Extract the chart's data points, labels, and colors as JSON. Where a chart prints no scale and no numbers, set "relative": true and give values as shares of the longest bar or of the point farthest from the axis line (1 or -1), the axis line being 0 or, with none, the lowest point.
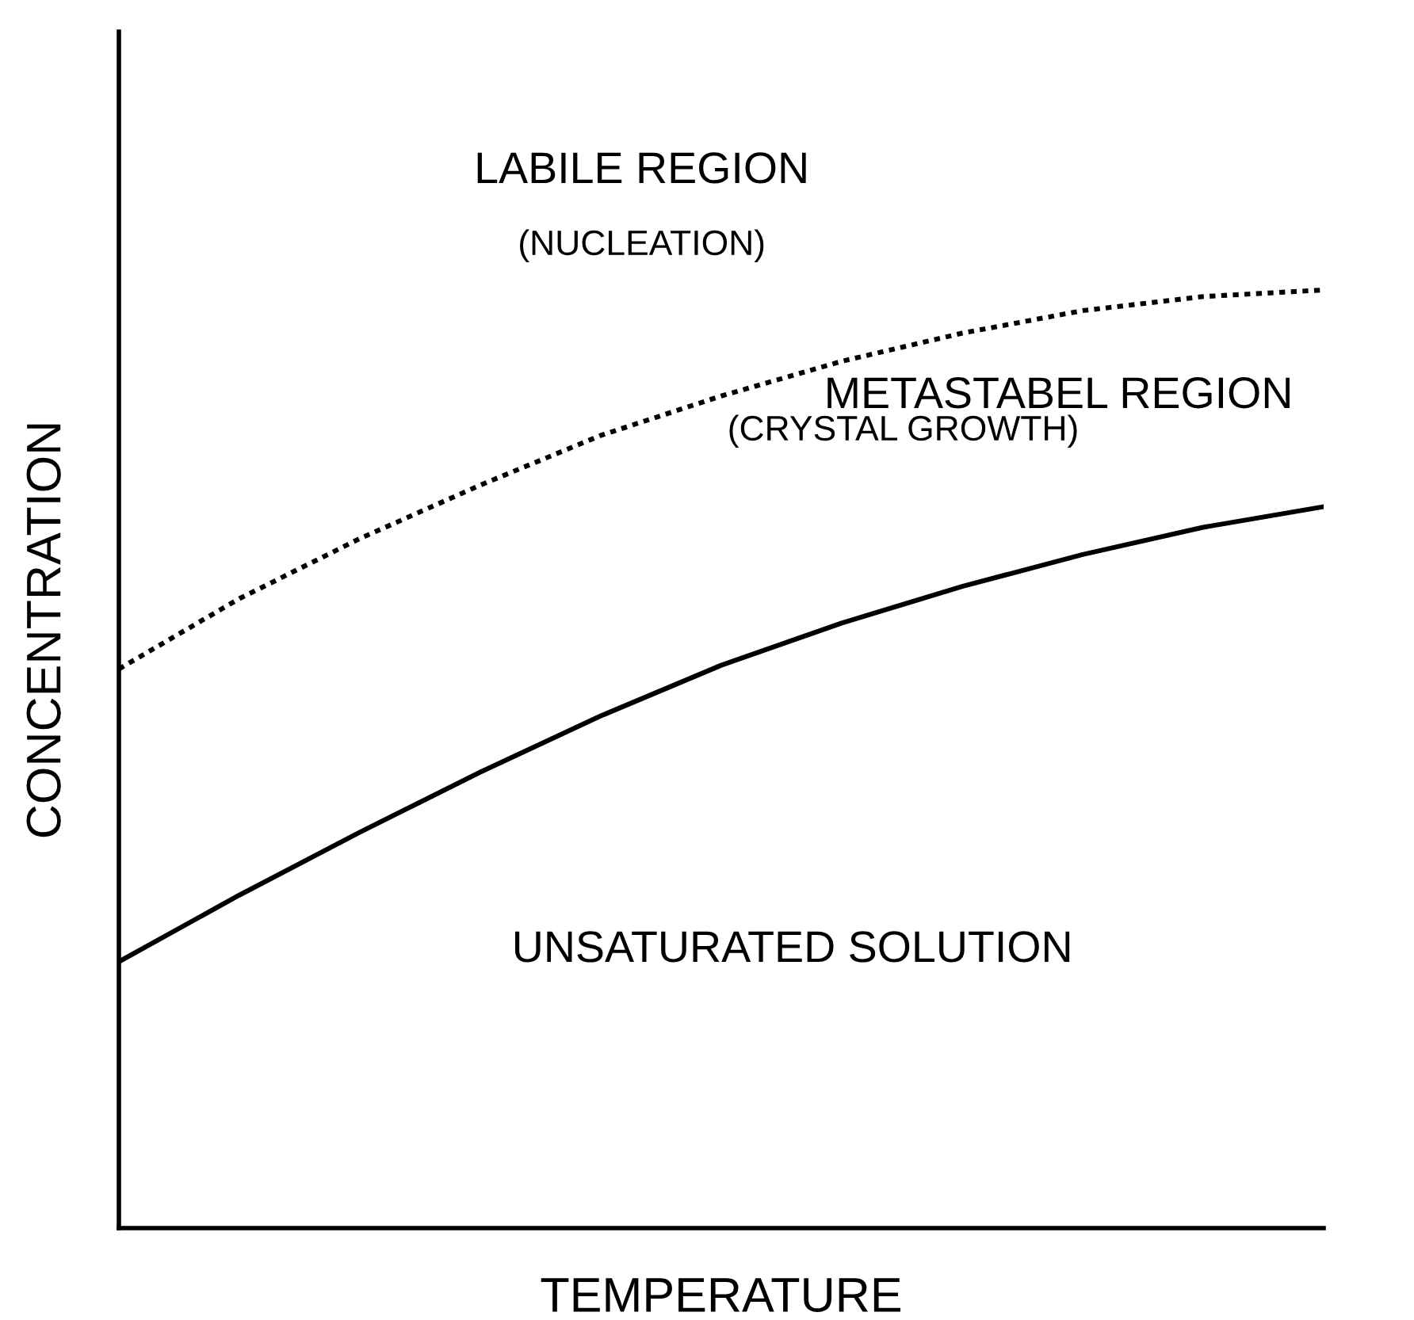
{
  "chart_data": {
    "type": "line",
    "relative": true,
    "xlabel": "TEMPERATURE",
    "ylabel": "CONCENTRATION",
    "categories": [
      null,
      null,
      null,
      null,
      null,
      null,
      null,
      null,
      null,
      null,
      null
    ],
    "series": [
      {
        "color": "#000000",
        "line_style": "dotted",
        "values": [
          0.596,
          0.671,
          0.735,
          0.792,
          0.845,
          0.887,
          0.924,
          0.954,
          0.978,
          0.993,
          1.0
        ]
      },
      {
        "color": "#000000",
        "line_style": "solid",
        "values": [
          0.284,
          0.355,
          0.422,
          0.486,
          0.546,
          0.6,
          0.645,
          0.684,
          0.718,
          0.747,
          0.769
        ]
      }
    ],
    "annotations": [
      "LABILE REGION",
      "(NUCLEATION)",
      "METASTABEL REGION",
      "(CRYSTAL GROWTH)",
      "UNSATURATED SOLUTION"
    ],
    "legend": false
  }
}
